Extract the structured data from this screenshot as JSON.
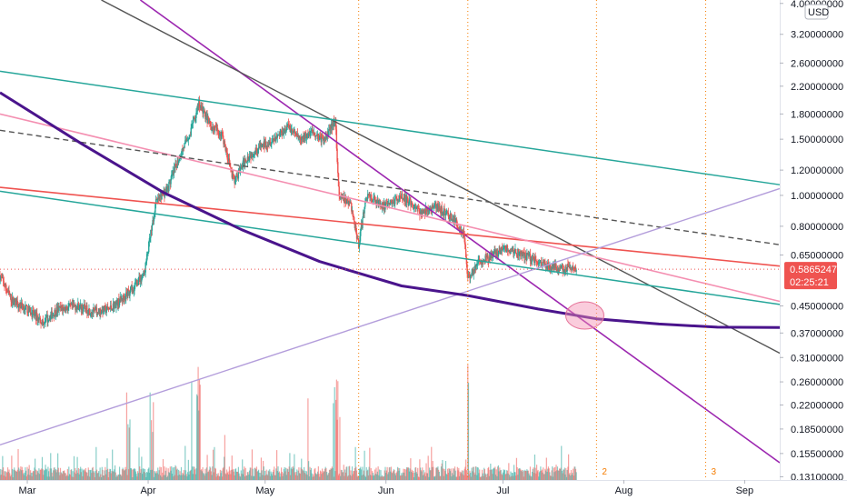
{
  "chart_data": {
    "type": "candlestick",
    "title": "",
    "currency_badge": "USD",
    "price_scale": "log",
    "ylim": [
      0.128,
      4.1
    ],
    "xlim": [
      "2021-02-22",
      "2021-09-10"
    ],
    "y_ticks": [
      "4.00000000",
      "3.20000000",
      "2.60000000",
      "2.20000000",
      "1.80000000",
      "1.50000000",
      "1.20000000",
      "1.00000000",
      "0.80000000",
      "0.65000000",
      "0.45000000",
      "0.37000000",
      "0.31000000",
      "0.26000000",
      "0.22000000",
      "0.18500000",
      "0.15500000",
      "0.13100000"
    ],
    "x_ticks": [
      {
        "label": "Mar",
        "date": "2021-03-01"
      },
      {
        "label": "Apr",
        "date": "2021-04-01"
      },
      {
        "label": "May",
        "date": "2021-05-01"
      },
      {
        "label": "Jun",
        "date": "2021-06-01"
      },
      {
        "label": "Jul",
        "date": "2021-07-01"
      },
      {
        "label": "Aug",
        "date": "2021-08-01"
      },
      {
        "label": "Sep",
        "date": "2021-09-01"
      }
    ],
    "last_price": {
      "value": "0.58652474",
      "countdown": "02:25:21",
      "color": "#ef5350"
    },
    "colors": {
      "up": "#26a69a",
      "down": "#ef5350"
    },
    "price_path": [
      [
        "2021-02-22",
        0.56
      ],
      [
        "2021-02-25",
        0.47
      ],
      [
        "2021-03-01",
        0.44
      ],
      [
        "2021-03-05",
        0.4
      ],
      [
        "2021-03-09",
        0.44
      ],
      [
        "2021-03-14",
        0.45
      ],
      [
        "2021-03-18",
        0.43
      ],
      [
        "2021-03-22",
        0.44
      ],
      [
        "2021-03-25",
        0.47
      ],
      [
        "2021-03-28",
        0.51
      ],
      [
        "2021-03-31",
        0.57
      ],
      [
        "2021-04-03",
        0.95
      ],
      [
        "2021-04-06",
        1.05
      ],
      [
        "2021-04-09",
        1.32
      ],
      [
        "2021-04-12",
        1.6
      ],
      [
        "2021-04-14",
        1.95
      ],
      [
        "2021-04-17",
        1.65
      ],
      [
        "2021-04-20",
        1.55
      ],
      [
        "2021-04-23",
        1.1
      ],
      [
        "2021-04-26",
        1.3
      ],
      [
        "2021-04-29",
        1.4
      ],
      [
        "2021-05-03",
        1.5
      ],
      [
        "2021-05-07",
        1.65
      ],
      [
        "2021-05-10",
        1.48
      ],
      [
        "2021-05-13",
        1.6
      ],
      [
        "2021-05-16",
        1.48
      ],
      [
        "2021-05-19",
        1.72
      ],
      [
        "2021-05-20",
        1.0
      ],
      [
        "2021-05-23",
        0.93
      ],
      [
        "2021-05-25",
        0.7
      ],
      [
        "2021-05-27",
        1.0
      ],
      [
        "2021-06-01",
        0.92
      ],
      [
        "2021-06-05",
        1.0
      ],
      [
        "2021-06-10",
        0.88
      ],
      [
        "2021-06-14",
        0.92
      ],
      [
        "2021-06-18",
        0.85
      ],
      [
        "2021-06-21",
        0.76
      ],
      [
        "2021-06-22",
        0.55
      ],
      [
        "2021-06-25",
        0.62
      ],
      [
        "2021-06-28",
        0.64
      ],
      [
        "2021-07-01",
        0.68
      ],
      [
        "2021-07-05",
        0.66
      ],
      [
        "2021-07-09",
        0.63
      ],
      [
        "2021-07-13",
        0.6
      ],
      [
        "2021-07-17",
        0.59
      ],
      [
        "2021-07-20",
        0.58652474
      ]
    ],
    "trendlines": [
      {
        "color": "#9c27b0",
        "width": 1.6,
        "points": [
          [
            "2021-03-30",
            4.1
          ],
          [
            "2021-09-10",
            0.145
          ]
        ]
      },
      {
        "color": "#555555",
        "width": 1.4,
        "points": [
          [
            "2021-03-20",
            4.1
          ],
          [
            "2021-09-10",
            0.32
          ]
        ]
      },
      {
        "color": "#26a69a",
        "width": 1.5,
        "points": [
          [
            "2021-02-22",
            2.45
          ],
          [
            "2021-09-10",
            1.08
          ]
        ]
      },
      {
        "color": "#26a69a",
        "width": 1.5,
        "points": [
          [
            "2021-02-22",
            1.03
          ],
          [
            "2021-09-10",
            0.455
          ]
        ]
      },
      {
        "color": "#ef5350",
        "width": 1.6,
        "points": [
          [
            "2021-02-22",
            1.06
          ],
          [
            "2021-09-10",
            0.6
          ]
        ]
      },
      {
        "color": "#f48fb1",
        "width": 1.6,
        "points": [
          [
            "2021-02-22",
            1.8
          ],
          [
            "2021-09-10",
            0.465
          ]
        ]
      },
      {
        "color": "#555555",
        "width": 1.4,
        "dashed": true,
        "points": [
          [
            "2021-02-22",
            1.6
          ],
          [
            "2021-09-10",
            0.7
          ]
        ]
      },
      {
        "color": "#b39ddb",
        "width": 1.4,
        "points": [
          [
            "2021-02-22",
            0.165
          ],
          [
            "2021-09-10",
            1.05
          ]
        ]
      }
    ],
    "curve": {
      "color": "#4a148c",
      "width": 3,
      "points": [
        [
          "2021-02-22",
          2.1
        ],
        [
          "2021-03-15",
          1.45
        ],
        [
          "2021-04-05",
          1.02
        ],
        [
          "2021-04-25",
          0.78
        ],
        [
          "2021-05-15",
          0.62
        ],
        [
          "2021-06-05",
          0.52
        ],
        [
          "2021-06-22",
          0.485
        ],
        [
          "2021-07-10",
          0.44
        ],
        [
          "2021-07-25",
          0.41
        ],
        [
          "2021-08-10",
          0.395
        ],
        [
          "2021-08-25",
          0.386
        ],
        [
          "2021-09-10",
          0.385
        ]
      ]
    },
    "cycle_lines": [
      {
        "date": "2021-05-25",
        "label": ""
      },
      {
        "date": "2021-06-22",
        "label": ""
      },
      {
        "date": "2021-07-25",
        "label": "2"
      },
      {
        "date": "2021-08-22",
        "label": "3"
      }
    ],
    "highlight": {
      "date": "2021-07-22",
      "price": 0.42,
      "color": "#f48fb1"
    }
  }
}
